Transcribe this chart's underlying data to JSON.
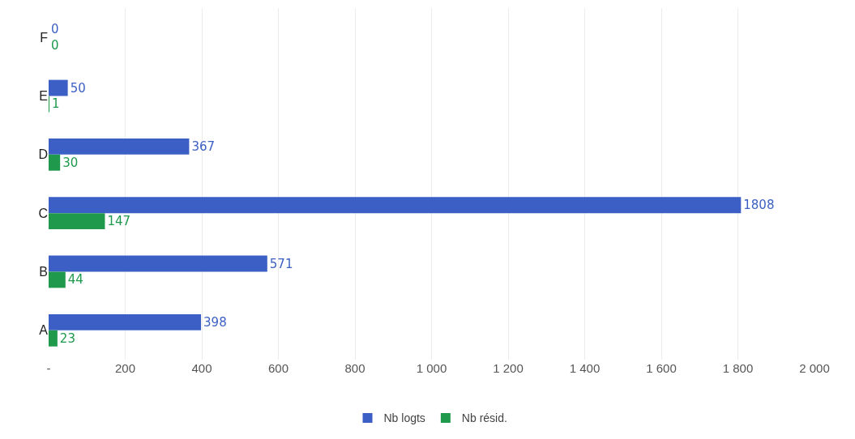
{
  "chart_data": {
    "type": "bar",
    "orientation": "horizontal",
    "categories": [
      "F",
      "E",
      "D",
      "C",
      "B",
      "A"
    ],
    "series": [
      {
        "name": "Nb logts",
        "color": "#3b5fc4",
        "values": [
          0,
          50,
          367,
          1808,
          571,
          398
        ]
      },
      {
        "name": "Nb résid.",
        "color": "#1f9a4c",
        "values": [
          0,
          1,
          30,
          147,
          44,
          23
        ]
      }
    ],
    "xlim": [
      0,
      2000
    ],
    "xticks": [
      {
        "value": 0,
        "label": "-"
      },
      200,
      400,
      600,
      800,
      {
        "value": 1000,
        "label": "1 000"
      },
      {
        "value": 1200,
        "label": "1 200"
      },
      {
        "value": 1400,
        "label": "1 400"
      },
      {
        "value": 1600,
        "label": "1 600"
      },
      {
        "value": 1800,
        "label": "1 800"
      },
      {
        "value": 2000,
        "label": "2 000"
      }
    ],
    "grid": "x",
    "legend": "bottom",
    "data_labels": true
  }
}
